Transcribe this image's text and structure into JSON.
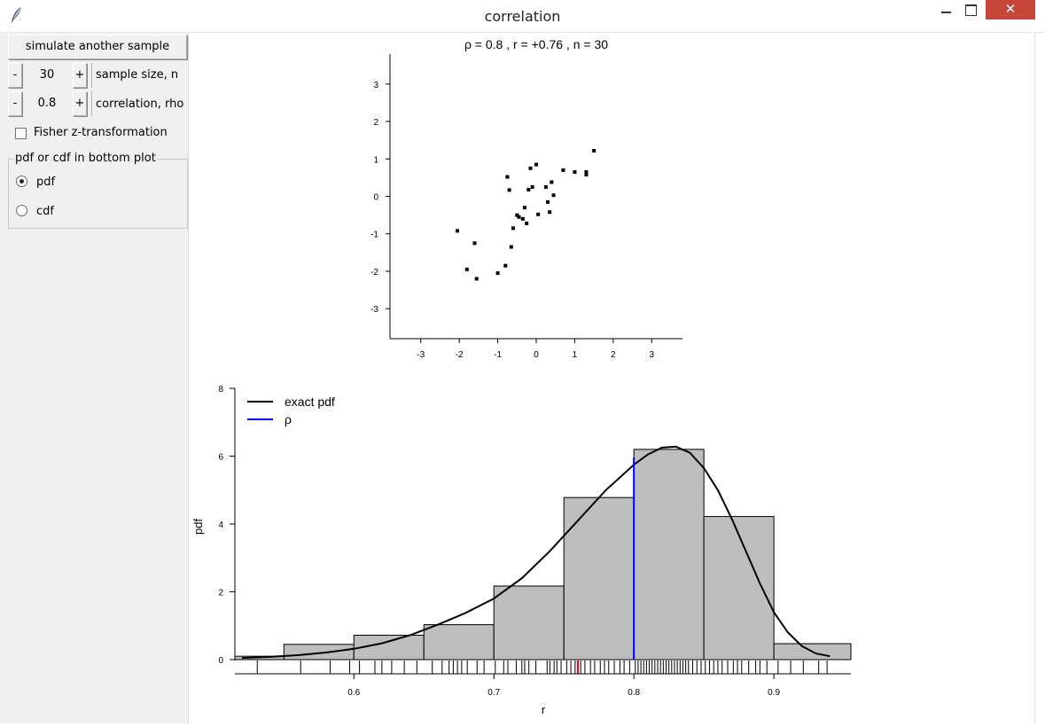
{
  "window": {
    "title": "correlation",
    "close_label": "✕"
  },
  "controls": {
    "simulate_label": "simulate another sample",
    "minus_label": "-",
    "plus_label": "+",
    "sample_size": {
      "value": "30",
      "label": "sample size, n"
    },
    "correlation": {
      "value": "0.8",
      "label": "correlation, rho"
    },
    "fisher": {
      "label": "Fisher z-transformation",
      "checked": false
    },
    "plot_mode": {
      "legend": "pdf or cdf in bottom plot",
      "options": [
        "pdf",
        "cdf"
      ],
      "selected": "pdf"
    }
  },
  "chart_data": [
    {
      "type": "scatter",
      "title": "ρ = 0.8 , r = +0.76 , n = 30",
      "xlabel": "",
      "ylabel": "",
      "xlim": [
        -3.8,
        3.8
      ],
      "ylim": [
        -3.8,
        3.8
      ],
      "xticks": [
        -3,
        -2,
        -1,
        0,
        1,
        2,
        3
      ],
      "yticks": [
        -3,
        -2,
        -1,
        0,
        1,
        2,
        3
      ],
      "x": [
        -2.05,
        -1.8,
        -1.55,
        -1.6,
        -1.0,
        -0.8,
        -0.75,
        -0.7,
        -0.65,
        -0.6,
        -0.5,
        -0.45,
        -0.35,
        -0.3,
        -0.25,
        -0.2,
        -0.15,
        -0.1,
        0.0,
        0.05,
        0.25,
        0.3,
        0.35,
        0.4,
        0.45,
        0.7,
        1.0,
        1.3,
        1.3,
        1.5
      ],
      "y": [
        -0.92,
        -1.95,
        -2.2,
        -1.25,
        -2.05,
        -1.85,
        0.52,
        0.17,
        -1.35,
        -0.85,
        -0.5,
        -0.55,
        -0.6,
        -0.3,
        -0.72,
        0.18,
        0.75,
        0.25,
        0.85,
        -0.48,
        0.25,
        -0.15,
        -0.42,
        0.38,
        0.03,
        0.7,
        0.65,
        0.65,
        0.58,
        1.22
      ]
    },
    {
      "type": "bar",
      "xlabel": "r",
      "ylabel": "pdf",
      "xlim": [
        0.515,
        0.955
      ],
      "ylim": [
        0,
        8
      ],
      "xticks": [
        0.6,
        0.7,
        0.8,
        0.9
      ],
      "yticks": [
        0,
        2,
        4,
        6,
        8
      ],
      "bins": [
        {
          "from": 0.515,
          "to": 0.55,
          "value": 0.1
        },
        {
          "from": 0.55,
          "to": 0.6,
          "value": 0.45
        },
        {
          "from": 0.6,
          "to": 0.65,
          "value": 0.72
        },
        {
          "from": 0.65,
          "to": 0.7,
          "value": 1.03
        },
        {
          "from": 0.7,
          "to": 0.75,
          "value": 2.17
        },
        {
          "from": 0.75,
          "to": 0.8,
          "value": 4.78
        },
        {
          "from": 0.8,
          "to": 0.85,
          "value": 6.2
        },
        {
          "from": 0.85,
          "to": 0.9,
          "value": 4.22
        },
        {
          "from": 0.9,
          "to": 0.955,
          "value": 0.47
        }
      ],
      "series": [
        {
          "name": "exact pdf",
          "color": "#000000",
          "x": [
            0.52,
            0.54,
            0.56,
            0.58,
            0.6,
            0.62,
            0.64,
            0.66,
            0.68,
            0.7,
            0.72,
            0.74,
            0.76,
            0.78,
            0.8,
            0.81,
            0.82,
            0.83,
            0.84,
            0.85,
            0.86,
            0.87,
            0.88,
            0.89,
            0.9,
            0.91,
            0.92,
            0.93,
            0.94
          ],
          "y": [
            0.05,
            0.08,
            0.13,
            0.21,
            0.32,
            0.48,
            0.72,
            1.03,
            1.38,
            1.8,
            2.4,
            3.2,
            4.1,
            5.0,
            5.75,
            6.05,
            6.25,
            6.28,
            6.1,
            5.65,
            5.0,
            4.15,
            3.2,
            2.25,
            1.4,
            0.8,
            0.4,
            0.18,
            0.1
          ]
        },
        {
          "name": "ρ",
          "color": "#0000ff",
          "x": 0.8
        }
      ],
      "observed_r": 0.76,
      "observed_r_color": "#ff0000",
      "rug_color": "#000000",
      "rug": [
        0.531,
        0.562,
        0.583,
        0.597,
        0.604,
        0.615,
        0.62,
        0.627,
        0.636,
        0.645,
        0.656,
        0.663,
        0.668,
        0.671,
        0.674,
        0.677,
        0.681,
        0.688,
        0.693,
        0.701,
        0.707,
        0.71,
        0.716,
        0.72,
        0.722,
        0.725,
        0.73,
        0.738,
        0.74,
        0.743,
        0.745,
        0.748,
        0.752,
        0.755,
        0.758,
        0.762,
        0.765,
        0.769,
        0.772,
        0.776,
        0.779,
        0.782,
        0.786,
        0.79,
        0.793,
        0.797,
        0.801,
        0.803,
        0.805,
        0.807,
        0.809,
        0.811,
        0.813,
        0.815,
        0.817,
        0.819,
        0.821,
        0.823,
        0.825,
        0.827,
        0.829,
        0.831,
        0.833,
        0.835,
        0.837,
        0.839,
        0.842,
        0.845,
        0.848,
        0.851,
        0.854,
        0.857,
        0.86,
        0.863,
        0.867,
        0.871,
        0.874,
        0.877,
        0.882,
        0.887,
        0.89,
        0.895,
        0.903,
        0.912,
        0.921,
        0.932,
        0.938
      ],
      "legend_position": "top-left"
    }
  ]
}
